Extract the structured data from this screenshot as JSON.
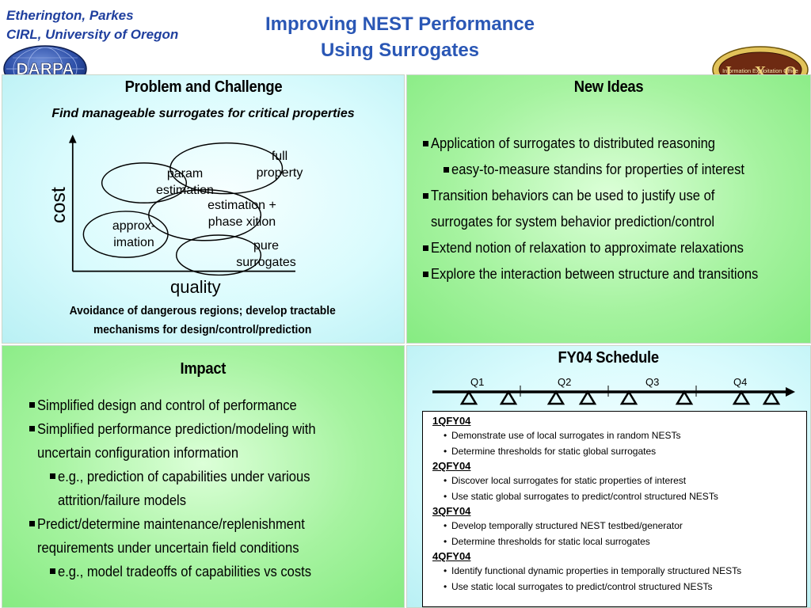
{
  "header": {
    "authors_line1": "Etherington, Parkes",
    "authors_line2": "CIRL, University of Oregon",
    "title_line1": "Improving NEST Performance",
    "title_line2": "Using Surrogates"
  },
  "logos": {
    "darpa_text": "DARPA",
    "ixo_text": "Information Exploitation Office",
    "ixo_letters": [
      "I",
      "X",
      "O"
    ],
    "darpa_color": "#1f3f8f",
    "ixo_color": "#b8860b"
  },
  "problem": {
    "title": "Problem and Challenge",
    "subtitle": "Find manageable surrogates for critical properties",
    "y_label": "cost",
    "x_label": "quality",
    "ellipses": {
      "full_property_1": "full",
      "full_property_2": "property",
      "param_1": "param",
      "param_2": "estimation",
      "estimation_1": "estimation +",
      "estimation_2": "phase xition",
      "approx_1": "approx-",
      "approx_2": "imation",
      "pure_1": "pure",
      "pure_2": "surrogates"
    },
    "footer_line1": "Avoidance of dangerous regions; develop tractable",
    "footer_line2": "mechanisms for design/control/prediction"
  },
  "new_ideas": {
    "title": "New Ideas",
    "bullets": [
      "Application of surrogates to distributed reasoning",
      "easy-to-measure standins for properties of interest",
      "Transition behaviors can be used to justify use of",
      "surrogates for system behavior prediction/control",
      "Extend notion of relaxation to approximate relaxations",
      "Explore the interaction between structure and transitions"
    ]
  },
  "impact": {
    "title": "Impact",
    "bullets": [
      "Simplified design and control of performance",
      "Simplified performance prediction/modeling with",
      "uncertain configuration information",
      "e.g., prediction of capabilities under various",
      "attrition/failure models",
      "Predict/determine maintenance/replenishment",
      "requirements under uncertain field conditions",
      "e.g., model tradeoffs of capabilities vs costs"
    ]
  },
  "schedule": {
    "title": "FY04 Schedule",
    "quarters": [
      "Q1",
      "Q2",
      "Q3",
      "Q4"
    ],
    "milestone_count": 9,
    "groups": [
      {
        "heading": "1QFY04",
        "items": [
          "Demonstrate use of local surrogates in random NESTs",
          "Determine thresholds for static global surrogates"
        ]
      },
      {
        "heading": "2QFY04",
        "items": [
          "Discover local surrogates for static properties of interest",
          "Use static global surrogates to predict/control structured NESTs"
        ]
      },
      {
        "heading": "3QFY04",
        "items": [
          "Develop temporally structured NEST testbed/generator",
          "Determine thresholds for static local surrogates"
        ]
      },
      {
        "heading": "4QFY04",
        "items": [
          "Identify functional dynamic properties in temporally structured NESTs",
          "Use static local surrogates to predict/control structured NESTs"
        ]
      }
    ]
  }
}
